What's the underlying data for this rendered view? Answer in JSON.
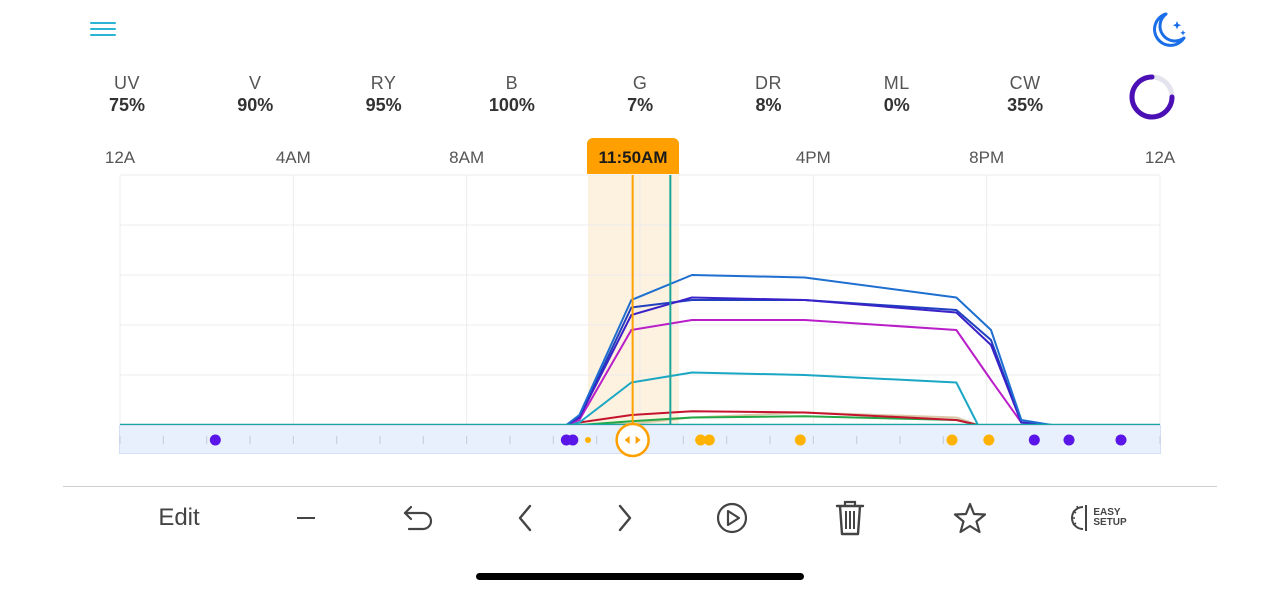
{
  "header": {
    "menu_icon": "hamburger-menu-icon",
    "night_mode_icon": "moon-stars-icon"
  },
  "channels": [
    {
      "name": "UV",
      "value": "75%"
    },
    {
      "name": "V",
      "value": "90%"
    },
    {
      "name": "RY",
      "value": "95%"
    },
    {
      "name": "B",
      "value": "100%"
    },
    {
      "name": "G",
      "value": "7%"
    },
    {
      "name": "DR",
      "value": "8%"
    },
    {
      "name": "ML",
      "value": "0%"
    },
    {
      "name": "CW",
      "value": "35%"
    }
  ],
  "status_ring": {
    "icon": "progress-ring-icon",
    "color": "#4a10b5",
    "track_color": "#e4e4ee"
  },
  "timeline": {
    "hour_labels": [
      "12A",
      "4AM",
      "8AM",
      "4PM",
      "8PM",
      "12A"
    ],
    "current_time": "11:50AM",
    "highlight_color": "#ffa000"
  },
  "chart_data": {
    "type": "line",
    "x_unit": "hour of day",
    "xlim": [
      0,
      24
    ],
    "ylim": [
      0,
      100
    ],
    "grid": true,
    "series": [
      {
        "color": "#1e6fd0",
        "points": [
          [
            0,
            0
          ],
          [
            10.3,
            0
          ],
          [
            10.6,
            4
          ],
          [
            11.8,
            50
          ],
          [
            13.2,
            60
          ],
          [
            15.8,
            59
          ],
          [
            19.3,
            51
          ],
          [
            20.1,
            38
          ],
          [
            20.8,
            2
          ],
          [
            21.5,
            0
          ],
          [
            24,
            0
          ]
        ]
      },
      {
        "color": "#3a22c9",
        "points": [
          [
            0,
            0
          ],
          [
            10.3,
            0
          ],
          [
            10.6,
            3
          ],
          [
            11.8,
            44
          ],
          [
            13.2,
            51
          ],
          [
            15.8,
            50
          ],
          [
            19.3,
            45
          ],
          [
            20.1,
            32
          ],
          [
            20.8,
            1
          ],
          [
            21.5,
            0
          ],
          [
            24,
            0
          ]
        ]
      },
      {
        "color": "#1f3fbf",
        "points": [
          [
            0,
            0
          ],
          [
            10.3,
            0
          ],
          [
            10.6,
            3
          ],
          [
            11.8,
            47
          ],
          [
            13.2,
            50
          ],
          [
            15.8,
            50
          ],
          [
            19.3,
            46
          ],
          [
            20.1,
            34
          ],
          [
            20.8,
            1
          ],
          [
            21.5,
            0
          ],
          [
            24,
            0
          ]
        ]
      },
      {
        "color": "#b91ec9",
        "points": [
          [
            0,
            0
          ],
          [
            10.3,
            0
          ],
          [
            10.6,
            2
          ],
          [
            11.8,
            38
          ],
          [
            13.2,
            42
          ],
          [
            15.8,
            42
          ],
          [
            19.3,
            38
          ],
          [
            20.1,
            18
          ],
          [
            20.8,
            1
          ],
          [
            21.5,
            0
          ],
          [
            24,
            0
          ]
        ]
      },
      {
        "color": "#1aa7c4",
        "points": [
          [
            0,
            0
          ],
          [
            10.3,
            0
          ],
          [
            10.6,
            1
          ],
          [
            11.8,
            17
          ],
          [
            13.2,
            21
          ],
          [
            15.8,
            20
          ],
          [
            19.3,
            17
          ],
          [
            19.8,
            0
          ],
          [
            24,
            0
          ]
        ]
      },
      {
        "color": "#c4142e",
        "points": [
          [
            0,
            0
          ],
          [
            10.3,
            0
          ],
          [
            10.6,
            1
          ],
          [
            11.8,
            4
          ],
          [
            13.2,
            5.5
          ],
          [
            15.8,
            5
          ],
          [
            19.3,
            2
          ],
          [
            19.8,
            0
          ],
          [
            24,
            0
          ]
        ]
      },
      {
        "color": "#23a845",
        "points": [
          [
            0,
            0
          ],
          [
            10.6,
            0
          ],
          [
            11.8,
            1.5
          ],
          [
            13.2,
            3
          ],
          [
            15.8,
            3.5
          ],
          [
            19.3,
            2
          ],
          [
            19.8,
            0
          ],
          [
            24,
            0
          ]
        ]
      },
      {
        "color": "#d9c9a8",
        "points": [
          [
            0,
            0
          ],
          [
            10.6,
            0
          ],
          [
            11.8,
            0.5
          ],
          [
            13.2,
            3
          ],
          [
            15.8,
            5
          ],
          [
            19.3,
            3
          ],
          [
            19.8,
            0
          ],
          [
            24,
            0
          ]
        ]
      }
    ],
    "current_hour": 11.83,
    "marker_hour": 12.7,
    "highlight_range": [
      10.8,
      12.9
    ],
    "keyframes": [
      {
        "hour": 2.2,
        "color": "#5a16e8",
        "size": "large"
      },
      {
        "hour": 10.3,
        "color": "#5a16e8",
        "size": "large"
      },
      {
        "hour": 10.45,
        "color": "#5a16e8",
        "size": "large"
      },
      {
        "hour": 10.8,
        "color": "#ffb300",
        "size": "small"
      },
      {
        "hour": 13.4,
        "color": "#ffb300",
        "size": "large"
      },
      {
        "hour": 13.6,
        "color": "#ffb300",
        "size": "large"
      },
      {
        "hour": 15.7,
        "color": "#ffb300",
        "size": "large"
      },
      {
        "hour": 19.2,
        "color": "#ffb300",
        "size": "large"
      },
      {
        "hour": 20.05,
        "color": "#ffb300",
        "size": "large"
      },
      {
        "hour": 21.1,
        "color": "#5a16e8",
        "size": "large"
      },
      {
        "hour": 21.9,
        "color": "#5a16e8",
        "size": "large"
      },
      {
        "hour": 23.1,
        "color": "#5a16e8",
        "size": "large"
      }
    ]
  },
  "toolbar": {
    "edit_label": "Edit",
    "easy_setup_line1": "EASY",
    "easy_setup_line2": "SETUP",
    "icons": [
      "minus-icon",
      "undo-icon",
      "chevron-left-icon",
      "chevron-right-icon",
      "play-icon",
      "trash-icon",
      "star-icon",
      "easy-setup-icon"
    ]
  }
}
